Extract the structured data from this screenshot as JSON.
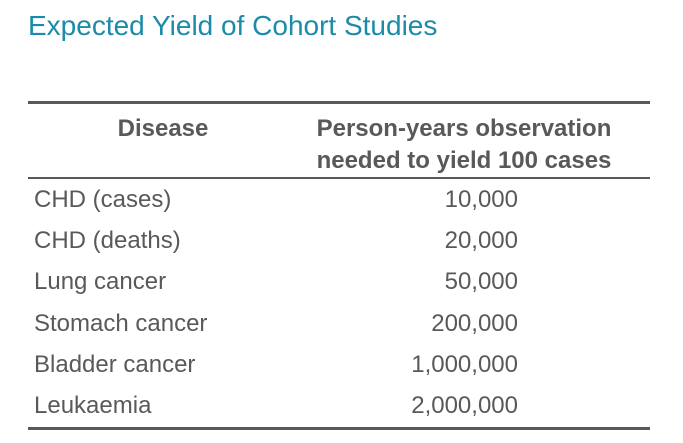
{
  "slide": {
    "title": "Expected Yield of Cohort Studies"
  },
  "colors": {
    "title_accent": "#1B8BA9",
    "table_text": "#595959",
    "table_rules": "#595959",
    "background": "#FFFFFF"
  },
  "table": {
    "columns": [
      {
        "label": "Disease"
      },
      {
        "label_lines": [
          "Person-years observation",
          "needed to yield 100 cases"
        ]
      }
    ],
    "rows": [
      {
        "disease": "CHD (cases)",
        "person_years": "10,000"
      },
      {
        "disease": "CHD (deaths)",
        "person_years": "20,000"
      },
      {
        "disease": "Lung cancer",
        "person_years": "50,000"
      },
      {
        "disease": "Stomach cancer",
        "person_years": "200,000"
      },
      {
        "disease": "Bladder cancer",
        "person_years": "1,000,000"
      },
      {
        "disease": "Leukaemia",
        "person_years": "2,000,000"
      }
    ]
  },
  "chart_data": {
    "type": "table",
    "title": "Expected Yield of Cohort Studies",
    "categories": [
      "CHD (cases)",
      "CHD (deaths)",
      "Lung cancer",
      "Stomach cancer",
      "Bladder cancer",
      "Leukaemia"
    ],
    "values": [
      10000,
      20000,
      50000,
      200000,
      1000000,
      2000000
    ],
    "xlabel": "Disease",
    "ylabel": "Person-years observation needed to yield 100 cases"
  }
}
